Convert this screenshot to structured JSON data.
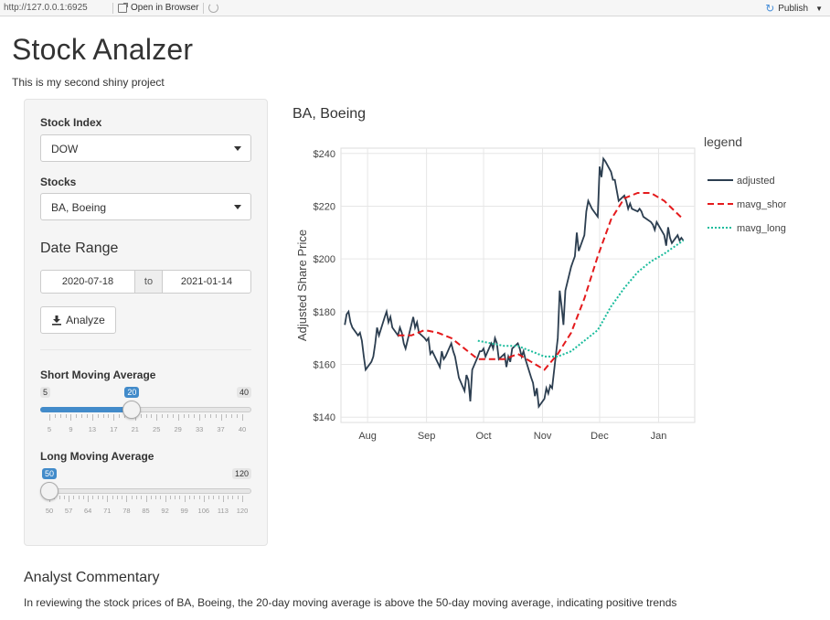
{
  "toolbar": {
    "url": "http://127.0.0.1:6925",
    "open_in_browser": "Open in Browser",
    "publish": "Publish"
  },
  "app": {
    "title": "Stock Analzer",
    "subtitle": "This is my second shiny project"
  },
  "sidebar": {
    "stock_index": {
      "label": "Stock Index",
      "value": "DOW"
    },
    "stocks": {
      "label": "Stocks",
      "value": "BA, Boeing"
    },
    "date_range": {
      "label": "Date Range",
      "start": "2020-07-18",
      "separator": "to",
      "end": "2021-01-14"
    },
    "analyze_button": "Analyze",
    "short_ma": {
      "label": "Short Moving Average",
      "min": 5,
      "max": 40,
      "value": 20,
      "min_label": "5",
      "max_label": "40",
      "value_label": "20",
      "ticks": [
        "5",
        "9",
        "13",
        "17",
        "21",
        "25",
        "29",
        "33",
        "37",
        "40"
      ]
    },
    "long_ma": {
      "label": "Long Moving Average",
      "min": 50,
      "max": 120,
      "value": 50,
      "min_label": "50",
      "max_label": "120",
      "value_label": "50",
      "ticks": [
        "50",
        "57",
        "64",
        "71",
        "78",
        "85",
        "92",
        "99",
        "106",
        "113",
        "120"
      ]
    }
  },
  "chart_title": "BA, Boeing",
  "chart_data": {
    "type": "line",
    "title": "BA, Boeing",
    "xlabel": "",
    "ylabel": "Adjusted Share Price",
    "x_ticks": [
      "Aug",
      "Sep",
      "Oct",
      "Nov",
      "Dec",
      "Jan"
    ],
    "y_ticks": [
      "$140",
      "$160",
      "$180",
      "$200",
      "$220",
      "$240"
    ],
    "ylim": [
      138,
      242
    ],
    "xlim": [
      "2020-07-18",
      "2021-01-20"
    ],
    "grid": true,
    "legend_title": "legend",
    "legend_position": "right",
    "series": [
      {
        "name": "adjusted",
        "color": "#2c3e50",
        "dash": "solid",
        "points": [
          [
            "2020-07-20",
            175
          ],
          [
            "2020-07-21",
            179
          ],
          [
            "2020-07-22",
            180
          ],
          [
            "2020-07-23",
            176
          ],
          [
            "2020-07-24",
            174
          ],
          [
            "2020-07-27",
            171
          ],
          [
            "2020-07-28",
            172
          ],
          [
            "2020-07-29",
            169
          ],
          [
            "2020-07-30",
            163
          ],
          [
            "2020-07-31",
            158
          ],
          [
            "2020-08-03",
            161
          ],
          [
            "2020-08-04",
            163
          ],
          [
            "2020-08-05",
            168
          ],
          [
            "2020-08-06",
            174
          ],
          [
            "2020-08-07",
            171
          ],
          [
            "2020-08-10",
            178
          ],
          [
            "2020-08-11",
            180
          ],
          [
            "2020-08-12",
            176
          ],
          [
            "2020-08-13",
            178
          ],
          [
            "2020-08-14",
            174
          ],
          [
            "2020-08-17",
            171
          ],
          [
            "2020-08-18",
            174
          ],
          [
            "2020-08-19",
            172
          ],
          [
            "2020-08-20",
            168
          ],
          [
            "2020-08-21",
            166
          ],
          [
            "2020-08-24",
            175
          ],
          [
            "2020-08-25",
            178
          ],
          [
            "2020-08-26",
            174
          ],
          [
            "2020-08-27",
            176
          ],
          [
            "2020-08-28",
            172
          ],
          [
            "2020-08-31",
            170
          ],
          [
            "2020-09-01",
            169
          ],
          [
            "2020-09-02",
            170
          ],
          [
            "2020-09-03",
            164
          ],
          [
            "2020-09-04",
            165
          ],
          [
            "2020-09-08",
            159
          ],
          [
            "2020-09-09",
            165
          ],
          [
            "2020-09-10",
            162
          ],
          [
            "2020-09-11",
            163
          ],
          [
            "2020-09-14",
            168
          ],
          [
            "2020-09-15",
            165
          ],
          [
            "2020-09-16",
            163
          ],
          [
            "2020-09-17",
            159
          ],
          [
            "2020-09-18",
            155
          ],
          [
            "2020-09-21",
            150
          ],
          [
            "2020-09-22",
            156
          ],
          [
            "2020-09-23",
            154
          ],
          [
            "2020-09-24",
            146
          ],
          [
            "2020-09-25",
            158
          ],
          [
            "2020-09-28",
            163
          ],
          [
            "2020-09-29",
            165
          ],
          [
            "2020-09-30",
            165
          ],
          [
            "2020-10-01",
            166
          ],
          [
            "2020-10-02",
            163
          ],
          [
            "2020-10-05",
            168
          ],
          [
            "2020-10-06",
            166
          ],
          [
            "2020-10-07",
            170
          ],
          [
            "2020-10-08",
            168
          ],
          [
            "2020-10-09",
            162
          ],
          [
            "2020-10-12",
            164
          ],
          [
            "2020-10-13",
            159
          ],
          [
            "2020-10-14",
            163
          ],
          [
            "2020-10-15",
            161
          ],
          [
            "2020-10-16",
            166
          ],
          [
            "2020-10-19",
            168
          ],
          [
            "2020-10-20",
            166
          ],
          [
            "2020-10-21",
            163
          ],
          [
            "2020-10-22",
            165
          ],
          [
            "2020-10-23",
            162
          ],
          [
            "2020-10-26",
            155
          ],
          [
            "2020-10-27",
            153
          ],
          [
            "2020-10-28",
            148
          ],
          [
            "2020-10-29",
            151
          ],
          [
            "2020-10-30",
            144
          ],
          [
            "2020-11-02",
            147
          ],
          [
            "2020-11-03",
            151
          ],
          [
            "2020-11-04",
            149
          ],
          [
            "2020-11-05",
            152
          ],
          [
            "2020-11-06",
            151
          ],
          [
            "2020-11-09",
            170
          ],
          [
            "2020-11-10",
            188
          ],
          [
            "2020-11-11",
            182
          ],
          [
            "2020-11-12",
            175
          ],
          [
            "2020-11-13",
            188
          ],
          [
            "2020-11-16",
            197
          ],
          [
            "2020-11-17",
            199
          ],
          [
            "2020-11-18",
            201
          ],
          [
            "2020-11-19",
            210
          ],
          [
            "2020-11-20",
            203
          ],
          [
            "2020-11-23",
            209
          ],
          [
            "2020-11-24",
            218
          ],
          [
            "2020-11-25",
            222
          ],
          [
            "2020-11-27",
            219
          ],
          [
            "2020-11-30",
            216
          ],
          [
            "2020-12-01",
            235
          ],
          [
            "2020-12-02",
            231
          ],
          [
            "2020-12-03",
            238
          ],
          [
            "2020-12-04",
            237
          ],
          [
            "2020-12-07",
            233
          ],
          [
            "2020-12-08",
            230
          ],
          [
            "2020-12-09",
            230
          ],
          [
            "2020-12-10",
            226
          ],
          [
            "2020-12-11",
            222
          ],
          [
            "2020-12-14",
            224
          ],
          [
            "2020-12-15",
            222
          ],
          [
            "2020-12-16",
            219
          ],
          [
            "2020-12-17",
            221
          ],
          [
            "2020-12-18",
            219
          ],
          [
            "2020-12-21",
            218
          ],
          [
            "2020-12-22",
            219
          ],
          [
            "2020-12-23",
            218
          ],
          [
            "2020-12-24",
            216
          ],
          [
            "2020-12-28",
            214
          ],
          [
            "2020-12-29",
            213
          ],
          [
            "2020-12-30",
            211
          ],
          [
            "2020-12-31",
            214
          ],
          [
            "2021-01-04",
            209
          ],
          [
            "2021-01-05",
            205
          ],
          [
            "2021-01-06",
            212
          ],
          [
            "2021-01-07",
            208
          ],
          [
            "2021-01-08",
            206
          ],
          [
            "2021-01-11",
            209
          ],
          [
            "2021-01-12",
            207
          ],
          [
            "2021-01-13",
            208
          ],
          [
            "2021-01-14",
            207
          ]
        ]
      },
      {
        "name": "mavg_short",
        "color": "#e41a1c",
        "dash": "dashed",
        "points": [
          [
            "2020-08-17",
            171
          ],
          [
            "2020-08-24",
            171
          ],
          [
            "2020-08-31",
            173
          ],
          [
            "2020-09-07",
            172
          ],
          [
            "2020-09-14",
            170
          ],
          [
            "2020-09-21",
            166
          ],
          [
            "2020-09-28",
            162
          ],
          [
            "2020-10-05",
            162
          ],
          [
            "2020-10-12",
            162
          ],
          [
            "2020-10-19",
            164
          ],
          [
            "2020-10-26",
            161
          ],
          [
            "2020-11-02",
            158
          ],
          [
            "2020-11-09",
            164
          ],
          [
            "2020-11-16",
            172
          ],
          [
            "2020-11-23",
            185
          ],
          [
            "2020-11-30",
            201
          ],
          [
            "2020-12-07",
            215
          ],
          [
            "2020-12-14",
            223
          ],
          [
            "2020-12-21",
            225
          ],
          [
            "2020-12-28",
            225
          ],
          [
            "2021-01-04",
            222
          ],
          [
            "2021-01-14",
            215
          ]
        ]
      },
      {
        "name": "mavg_long",
        "color": "#1abc9c",
        "dash": "dotted",
        "points": [
          [
            "2020-09-28",
            169
          ],
          [
            "2020-10-05",
            168
          ],
          [
            "2020-10-12",
            167
          ],
          [
            "2020-10-19",
            167
          ],
          [
            "2020-10-26",
            165
          ],
          [
            "2020-11-02",
            163
          ],
          [
            "2020-11-09",
            163
          ],
          [
            "2020-11-16",
            165
          ],
          [
            "2020-11-23",
            169
          ],
          [
            "2020-11-30",
            173
          ],
          [
            "2020-12-07",
            182
          ],
          [
            "2020-12-14",
            189
          ],
          [
            "2020-12-21",
            195
          ],
          [
            "2020-12-28",
            199
          ],
          [
            "2021-01-04",
            202
          ],
          [
            "2021-01-14",
            207
          ]
        ]
      }
    ]
  },
  "commentary": {
    "heading": "Analyst Commentary",
    "text": "In reviewing the stock prices of BA, Boeing, the 20-day moving average is above the 50-day moving average, indicating positive trends"
  }
}
